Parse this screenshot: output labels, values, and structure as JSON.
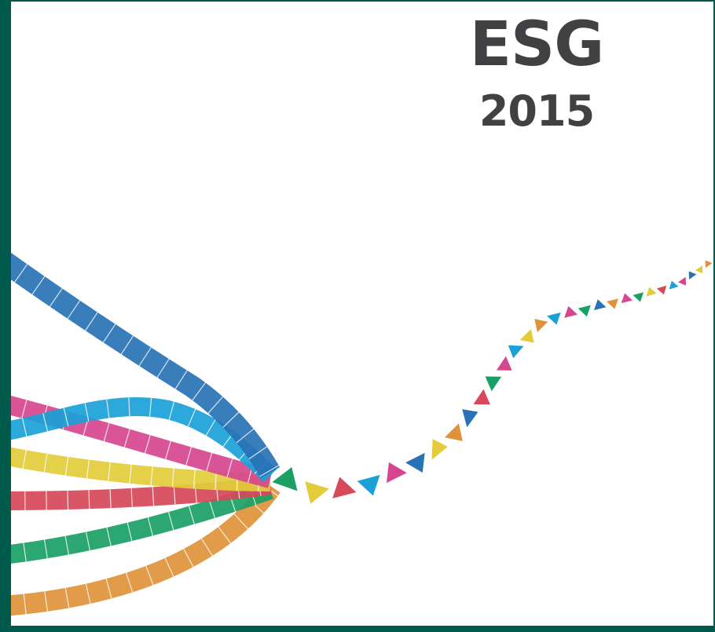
{
  "cover": {
    "title": "ESG",
    "year": "2015"
  }
}
